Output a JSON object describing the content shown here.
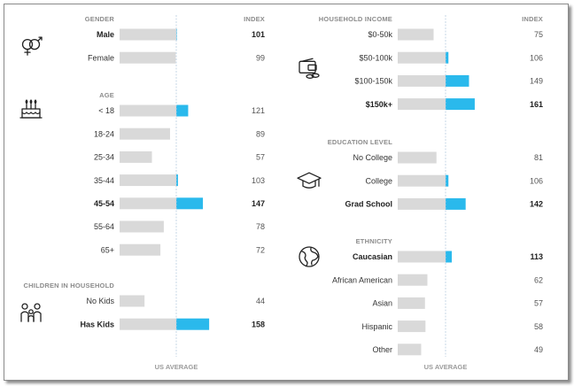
{
  "colors": {
    "track": "#d9d9d9",
    "above": "#2ab9ec",
    "text": "#333333",
    "header": "#8c8c8c",
    "avg_line": "#b8cde0"
  },
  "chart_data": {
    "type": "bar",
    "orientation": "horizontal",
    "reference_value": 100,
    "reference_label": "US AVERAGE",
    "index_label": "INDEX",
    "columns": [
      {
        "sections": [
          {
            "key": "gender",
            "title": "GENDER",
            "icon": "gender-icon",
            "show_index_header": true,
            "rows": [
              {
                "label": "Male",
                "value": 101,
                "bold": true
              },
              {
                "label": "Female",
                "value": 99,
                "bold": false
              }
            ]
          },
          {
            "key": "age",
            "title": "AGE",
            "icon": "birthday-cake-icon",
            "show_index_header": false,
            "rows": [
              {
                "label": "< 18",
                "value": 121,
                "bold": false
              },
              {
                "label": "18-24",
                "value": 89,
                "bold": false
              },
              {
                "label": "25-34",
                "value": 57,
                "bold": false
              },
              {
                "label": "35-44",
                "value": 103,
                "bold": false
              },
              {
                "label": "45-54",
                "value": 147,
                "bold": true
              },
              {
                "label": "55-64",
                "value": 78,
                "bold": false
              },
              {
                "label": "65+",
                "value": 72,
                "bold": false
              }
            ]
          },
          {
            "key": "children",
            "title": "CHILDREN IN HOUSEHOLD",
            "icon": "family-icon",
            "show_index_header": false,
            "rows": [
              {
                "label": "No Kids",
                "value": 44,
                "bold": false
              },
              {
                "label": "Has Kids",
                "value": 158,
                "bold": true
              }
            ]
          }
        ]
      },
      {
        "sections": [
          {
            "key": "income",
            "title": "HOUSEHOLD INCOME",
            "icon": "wallet-icon",
            "show_index_header": true,
            "rows": [
              {
                "label": "$0-50k",
                "value": 75,
                "bold": false
              },
              {
                "label": "$50-100k",
                "value": 106,
                "bold": false
              },
              {
                "label": "$100-150k",
                "value": 149,
                "bold": false
              },
              {
                "label": "$150k+",
                "value": 161,
                "bold": true
              }
            ]
          },
          {
            "key": "education",
            "title": "EDUCATION LEVEL",
            "icon": "graduation-cap-icon",
            "show_index_header": false,
            "rows": [
              {
                "label": "No College",
                "value": 81,
                "bold": false
              },
              {
                "label": "College",
                "value": 106,
                "bold": false
              },
              {
                "label": "Grad School",
                "value": 142,
                "bold": true
              }
            ]
          },
          {
            "key": "ethnicity",
            "title": "ETHNICITY",
            "icon": "globe-icon",
            "show_index_header": false,
            "rows": [
              {
                "label": "Caucasian",
                "value": 113,
                "bold": true
              },
              {
                "label": "African American",
                "value": 62,
                "bold": false
              },
              {
                "label": "Asian",
                "value": 57,
                "bold": false
              },
              {
                "label": "Hispanic",
                "value": 58,
                "bold": false
              },
              {
                "label": "Other",
                "value": 49,
                "bold": false
              }
            ]
          }
        ]
      }
    ]
  }
}
